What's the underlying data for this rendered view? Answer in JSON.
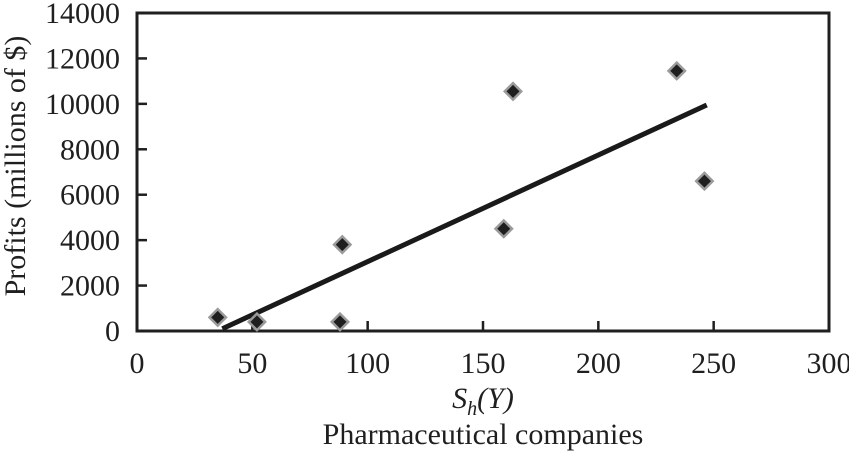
{
  "chart_data": {
    "type": "scatter",
    "title": "",
    "xlabel": "S_h(Y)",
    "xlabel_parts": {
      "base": "S",
      "sub": "h",
      "rest": "(Y)"
    },
    "ylabel": "Profits (millions of $)",
    "caption": "Pharmaceutical companies",
    "xlim": [
      0,
      300
    ],
    "ylim": [
      0,
      14000
    ],
    "x_ticks": [
      0,
      50,
      100,
      150,
      200,
      250,
      300
    ],
    "y_ticks": [
      0,
      2000,
      4000,
      6000,
      8000,
      10000,
      12000,
      14000
    ],
    "grid": false,
    "legend": "none",
    "series": [
      {
        "name": "Pharmaceutical companies",
        "marker": "diamond",
        "points": [
          {
            "x": 35,
            "y": 600
          },
          {
            "x": 52,
            "y": 400
          },
          {
            "x": 88,
            "y": 400
          },
          {
            "x": 89,
            "y": 3800
          },
          {
            "x": 159,
            "y": 4500
          },
          {
            "x": 163,
            "y": 10550
          },
          {
            "x": 234,
            "y": 11450
          },
          {
            "x": 246,
            "y": 6600
          }
        ]
      }
    ],
    "trendline": {
      "x1": 37,
      "y1": 100,
      "x2": 247,
      "y2": 9950
    },
    "colors": {
      "marker_fill": "#1f1f1f",
      "marker_border": "#9b9b9b",
      "trend_line": "#1a1a1a",
      "axis": "#1f1f1f",
      "text": "#1f1f1f",
      "background": "#ffffff"
    }
  }
}
